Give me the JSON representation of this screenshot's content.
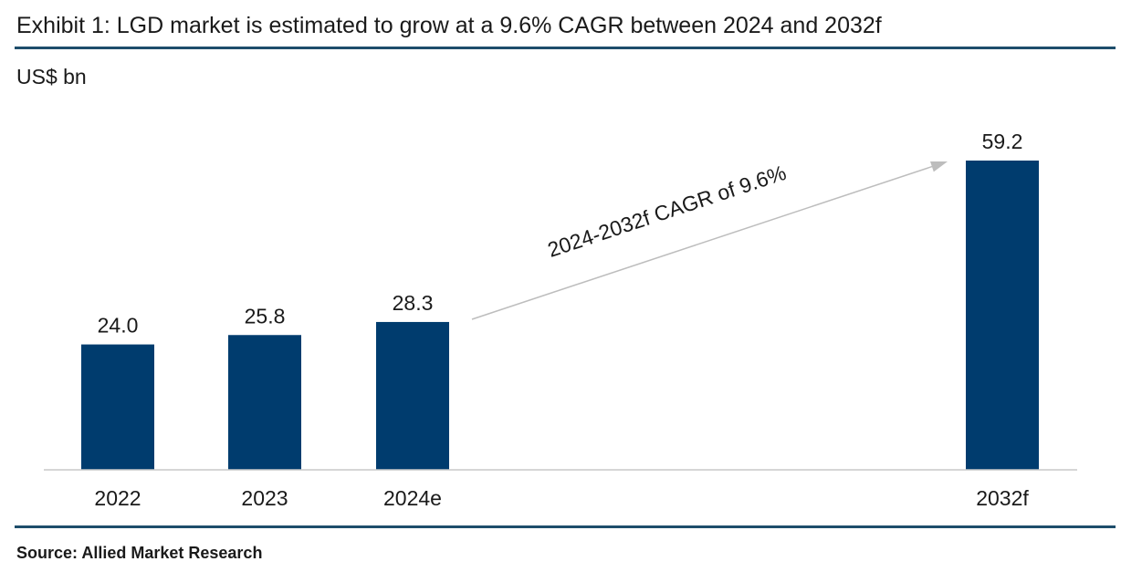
{
  "colors": {
    "bar": "#003c6e",
    "rule": "#1e4d6b",
    "axis": "#c8c8c8",
    "arrow": "#bdbdbd"
  },
  "chart_data": {
    "type": "bar",
    "title": "Exhibit 1: LGD market is estimated to grow at a 9.6% CAGR between 2024 and 2032f",
    "ylabel": "US$ bn",
    "xlabel": "",
    "categories": [
      "2022",
      "2023",
      "2024e",
      "2032f"
    ],
    "values": [
      24.0,
      25.8,
      28.3,
      59.2
    ],
    "data_labels": [
      "24.0",
      "25.8",
      "28.3",
      "59.2"
    ],
    "ylim": [
      0,
      64
    ],
    "grid": false,
    "legend": null,
    "annotations": [
      {
        "text": "2024-2032f CAGR of 9.6%",
        "type": "arrow",
        "from": "2024e",
        "to": "2032f"
      }
    ],
    "source": "Source: Allied Market Research"
  }
}
